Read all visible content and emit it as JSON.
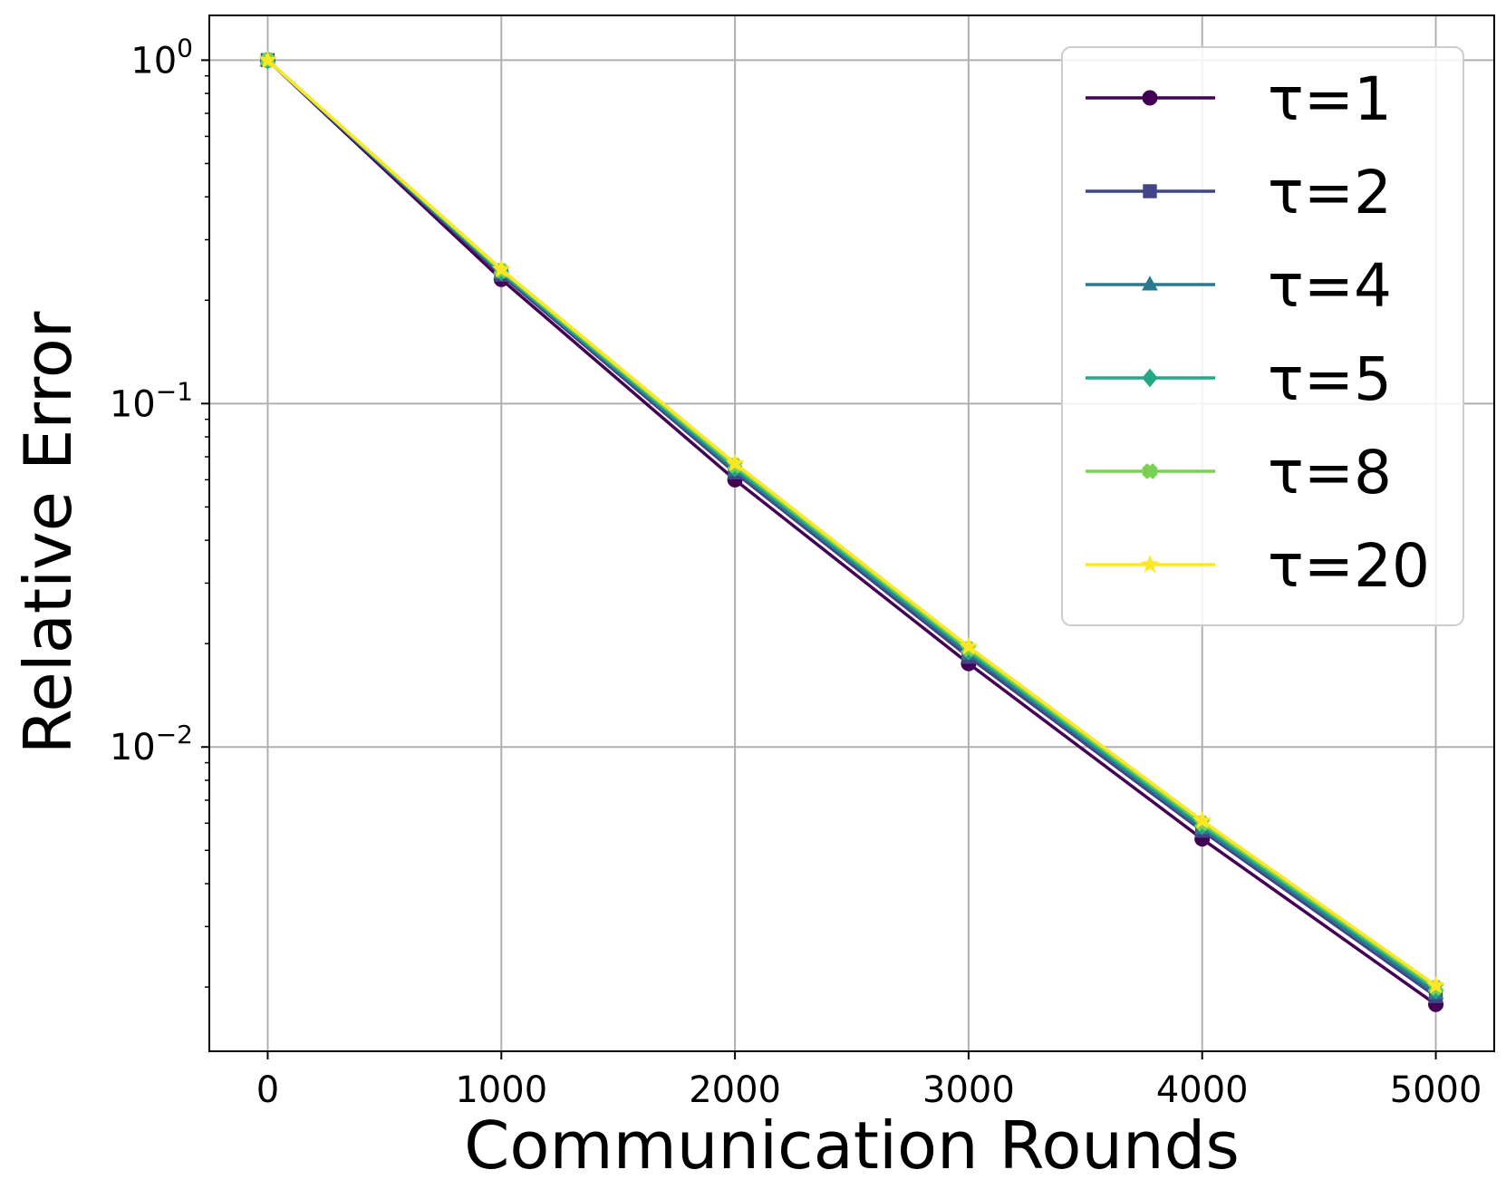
{
  "chart_data": {
    "type": "line",
    "xlabel": "Communication Rounds",
    "ylabel": "Relative Error",
    "xlim": [
      -250,
      5250
    ],
    "ylim": [
      0.0013,
      1.35
    ],
    "yscale": "log",
    "grid": true,
    "legend_position": "top-right",
    "x_ticks": [
      0,
      1000,
      2000,
      3000,
      4000,
      5000
    ],
    "x_tick_labels": [
      "0",
      "1000",
      "2000",
      "3000",
      "4000",
      "5000"
    ],
    "y_ticks": [
      1,
      0.1,
      0.01
    ],
    "y_tick_labels": [
      {
        "base": "10",
        "exp": "0"
      },
      {
        "base": "10",
        "exp": "−1"
      },
      {
        "base": "10",
        "exp": "−2"
      }
    ],
    "x": [
      0,
      1000,
      2000,
      3000,
      4000,
      5000
    ],
    "series": [
      {
        "name": "τ=1",
        "color": "#440154",
        "marker": "circle",
        "values": [
          1.0,
          0.23,
          0.06,
          0.0175,
          0.0054,
          0.00178
        ]
      },
      {
        "name": "τ=2",
        "color": "#414487",
        "marker": "square",
        "values": [
          1.0,
          0.237,
          0.063,
          0.0183,
          0.0057,
          0.00188
        ]
      },
      {
        "name": "τ=4",
        "color": "#2a788e",
        "marker": "triangle",
        "values": [
          1.0,
          0.24,
          0.064,
          0.0187,
          0.0058,
          0.00192
        ]
      },
      {
        "name": "τ=5",
        "color": "#22a884",
        "marker": "diamond",
        "values": [
          1.0,
          0.242,
          0.065,
          0.019,
          0.0059,
          0.00196
        ]
      },
      {
        "name": "τ=8",
        "color": "#7ad151",
        "marker": "plus",
        "values": [
          1.0,
          0.244,
          0.066,
          0.0193,
          0.006,
          0.00199
        ]
      },
      {
        "name": "τ=20",
        "color": "#fde725",
        "marker": "star",
        "values": [
          1.0,
          0.246,
          0.067,
          0.0196,
          0.0061,
          0.00202
        ]
      }
    ]
  }
}
